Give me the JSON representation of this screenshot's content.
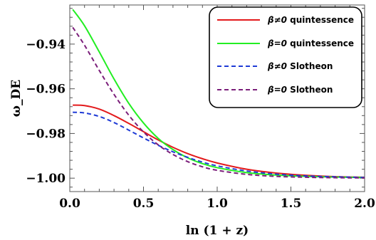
{
  "chart_data": {
    "type": "line",
    "xlabel": "ln (1 + z)",
    "ylabel": "ω_DE",
    "xlim": [
      0.0,
      2.0
    ],
    "ylim": [
      -1.006,
      -0.9225
    ],
    "x_ticks": [
      0.0,
      0.5,
      1.0,
      1.5,
      2.0
    ],
    "x_tick_labels": [
      "0.0",
      "0.5",
      "1.0",
      "1.5",
      "2.0"
    ],
    "y_ticks": [
      -1.0,
      -0.98,
      -0.96,
      -0.94
    ],
    "y_tick_labels": [
      "−1.00",
      "−0.98",
      "−0.96",
      "−0.94"
    ],
    "grid": false,
    "legend_position": "top-right",
    "series": [
      {
        "name": "β≠0 quintessence",
        "legend_symbol": "β≠0",
        "legend_text": "quintessence",
        "color": "#e31a1c",
        "dash": "solid",
        "x": [
          0.02,
          0.1,
          0.2,
          0.3,
          0.4,
          0.5,
          0.6,
          0.7,
          0.8,
          0.9,
          1.0,
          1.2,
          1.4,
          1.6,
          1.8,
          2.0
        ],
        "y": [
          -0.9673,
          -0.9675,
          -0.9691,
          -0.972,
          -0.9755,
          -0.9792,
          -0.9829,
          -0.9862,
          -0.989,
          -0.9913,
          -0.9932,
          -0.996,
          -0.9977,
          -0.9987,
          -0.9993,
          -0.9996
        ]
      },
      {
        "name": "β=0 quintessence",
        "legend_symbol": "β=0",
        "legend_text": "quintessence",
        "color": "#22ee22",
        "dash": "solid",
        "x": [
          0.02,
          0.1,
          0.2,
          0.3,
          0.4,
          0.5,
          0.6,
          0.7,
          0.8,
          0.9,
          1.0,
          1.2,
          1.4,
          1.6,
          1.8,
          2.0
        ],
        "y": [
          -0.9245,
          -0.9318,
          -0.9435,
          -0.9556,
          -0.9665,
          -0.9753,
          -0.9822,
          -0.9872,
          -0.9909,
          -0.9935,
          -0.9953,
          -0.9975,
          -0.9986,
          -0.9992,
          -0.9995,
          -0.9997
        ]
      },
      {
        "name": "β≠0 Slotheon",
        "legend_symbol": "β≠0",
        "legend_text": "Slotheon",
        "color": "#1f3bd6",
        "dash": "dashed",
        "x": [
          0.02,
          0.1,
          0.2,
          0.3,
          0.4,
          0.5,
          0.6,
          0.7,
          0.8,
          0.9,
          1.0,
          1.2,
          1.4,
          1.6,
          1.8,
          2.0
        ],
        "y": [
          -0.9705,
          -0.9708,
          -0.9724,
          -0.9751,
          -0.9785,
          -0.982,
          -0.9853,
          -0.9882,
          -0.9907,
          -0.9928,
          -0.9945,
          -0.9968,
          -0.9982,
          -0.999,
          -0.9994,
          -0.9997
        ]
      },
      {
        "name": "β=0 Slotheon",
        "legend_symbol": "β=0",
        "legend_text": "Slotheon",
        "color": "#7b1e7a",
        "dash": "dashed",
        "x": [
          0.02,
          0.1,
          0.2,
          0.3,
          0.4,
          0.5,
          0.6,
          0.7,
          0.8,
          0.9,
          1.0,
          1.2,
          1.4,
          1.6,
          1.8,
          2.0
        ],
        "y": [
          -0.9325,
          -0.9405,
          -0.9518,
          -0.9625,
          -0.9718,
          -0.9793,
          -0.9851,
          -0.9894,
          -0.9926,
          -0.9949,
          -0.9965,
          -0.9983,
          -0.9992,
          -0.9996,
          -0.9998,
          -0.9999
        ]
      }
    ]
  }
}
